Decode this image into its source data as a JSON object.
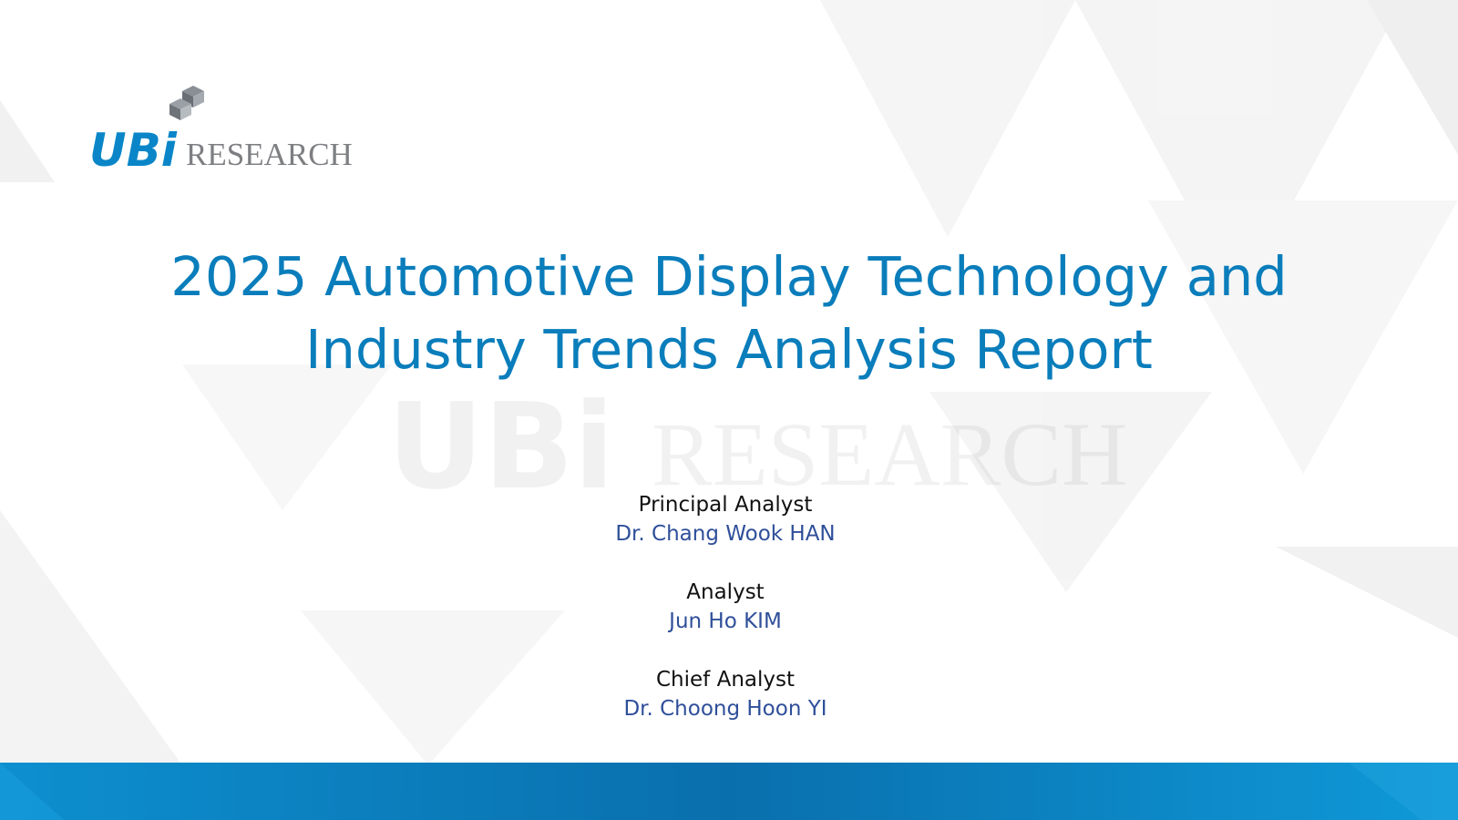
{
  "logo": {
    "brand": "UBi",
    "word": "RESEARCH"
  },
  "title": {
    "lines": [
      "2025 Automotive Display Technology and",
      "Industry Trends Analysis Report"
    ]
  },
  "analysts": [
    {
      "role": "Principal Analyst",
      "name": "Dr. Chang Wook HAN"
    },
    {
      "role": "Analyst",
      "name": "Jun Ho KIM"
    },
    {
      "role": "Chief Analyst",
      "name": "Dr. Choong Hoon YI"
    }
  ]
}
